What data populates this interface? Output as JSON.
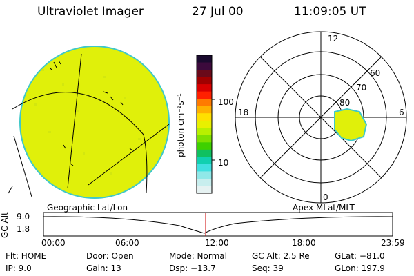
{
  "header": {
    "title": "Ultraviolet Imager",
    "date": "27 Jul 00",
    "time": "11:09:05 UT"
  },
  "colorbar": {
    "unit_label": "photon cm⁻²s⁻¹",
    "tick_high": "100",
    "tick_low": "10",
    "colors": [
      "#1a0a2e",
      "#3c0a3c",
      "#6a0a1a",
      "#a00000",
      "#d80000",
      "#ff2000",
      "#ff7a00",
      "#ffb000",
      "#ffe000",
      "#e8f000",
      "#b8f000",
      "#7ee000",
      "#3ed000",
      "#10c060",
      "#10d0b0",
      "#40e0e0",
      "#90e8e8",
      "#c8eeee",
      "#e6f2f2"
    ]
  },
  "polar": {
    "labels": {
      "top": "12",
      "left": "18",
      "right": "6",
      "bottom": "0"
    },
    "lat_labels": [
      "60",
      "70",
      "80"
    ]
  },
  "timeline": {
    "left_title": "Geographic Lat/Lon",
    "right_title": "Apex MLat/MLT",
    "ylabel": "GC Alt",
    "y_top": "9.0",
    "y_bottom": "1.8",
    "x_ticks": [
      "00:00",
      "06:00",
      "12:00",
      "18:00",
      "23:59"
    ]
  },
  "info": {
    "flt": "Flt: HOME",
    "ip": "IP:  9.0",
    "door": "Door: Open",
    "gain": "Gain: 13",
    "mode": "Mode: Normal",
    "dsp": "Dsp:  −13.7",
    "gcalt": "GC Alt: 2.5 Re",
    "seq": "Seq: 39",
    "glat": "GLat: −81.0",
    "glon": "GLon: 197.9"
  },
  "colors": {
    "image_fill": "#e0f00a",
    "image_edge": "#40c8c8",
    "oval_fill": "#e0f00a",
    "marker": "#cc0000"
  }
}
